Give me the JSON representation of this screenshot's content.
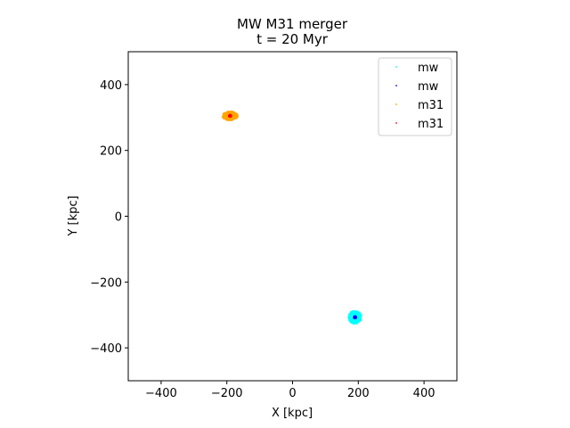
{
  "chart_data": {
    "type": "scatter",
    "title_line1": "MW M31 merger",
    "title_line2": "t = 20 Myr",
    "xlabel": "X [kpc]",
    "ylabel": "Y [kpc]",
    "xlim": [
      -500,
      500
    ],
    "ylim": [
      -500,
      500
    ],
    "xticks": [
      -400,
      -200,
      0,
      200,
      400
    ],
    "yticks": [
      -400,
      -200,
      0,
      200,
      400
    ],
    "xtick_labels": [
      "−400",
      "−200",
      "0",
      "200",
      "400"
    ],
    "ytick_labels": [
      "−400",
      "−200",
      "0",
      "200",
      "400"
    ],
    "grid": false,
    "legend_position": "top-right",
    "series": [
      {
        "name": "mw",
        "color": "#00ffff",
        "role": "disk",
        "center": [
          190,
          -307
        ],
        "spread": [
          20,
          20
        ]
      },
      {
        "name": "mw",
        "color": "#0000ff",
        "role": "core",
        "center": [
          190,
          -307
        ],
        "spread": [
          3,
          3
        ]
      },
      {
        "name": "m31",
        "color": "#ffa500",
        "role": "disk",
        "center": [
          -190,
          305
        ],
        "spread": [
          24,
          14
        ]
      },
      {
        "name": "m31",
        "color": "#ff0000",
        "role": "core",
        "center": [
          -190,
          305
        ],
        "spread": [
          3,
          3
        ]
      }
    ]
  }
}
